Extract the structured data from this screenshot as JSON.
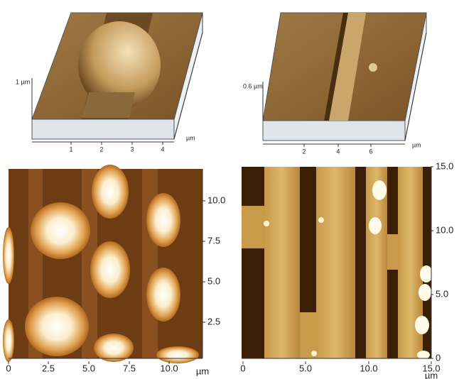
{
  "panels": [
    {
      "z_label": "1 µm",
      "x_ticks": [
        "1",
        "2",
        "3",
        "4"
      ],
      "unit": "µm"
    },
    {
      "z_label": "0.6 µm",
      "x_ticks": [
        "2",
        "4",
        "6"
      ],
      "unit": "µm"
    },
    {
      "x_ticks": [
        "0",
        "2.5",
        "5.0",
        "7.5",
        "10.0"
      ],
      "y_ticks": [
        "2.5",
        "5.0",
        "7.5",
        "10.0"
      ],
      "unit": "µm"
    },
    {
      "x_ticks": [
        "0",
        "5.0",
        "10.0",
        "15.0"
      ],
      "y_ticks": [
        "0",
        "5.0",
        "10.0",
        "15.0"
      ],
      "unit": "µm"
    }
  ]
}
